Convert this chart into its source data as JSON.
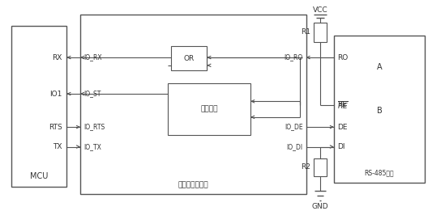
{
  "bg_color": "#ffffff",
  "line_color": "#555555",
  "text_color": "#333333",
  "mcu_label": "MCU",
  "fpga_label": "可编程逻辑芯片",
  "rs485_label": "RS-485芯片",
  "or_label": "OR",
  "detect_label": "检测模块",
  "vcc_label": "VCC",
  "gnd_label": "GND",
  "r1_label": "R1",
  "r2_label": "R2",
  "re_label": "RE̅",
  "A_label": "A",
  "B_label": "B"
}
